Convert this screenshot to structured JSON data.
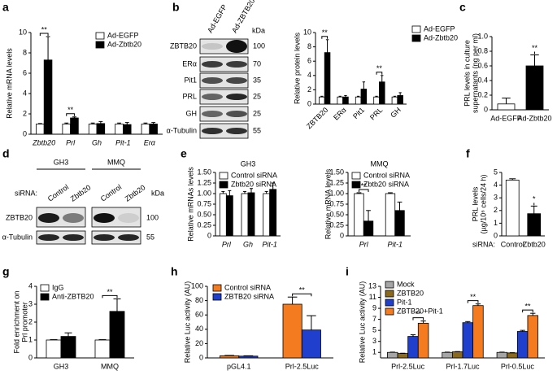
{
  "chart_data": [
    {
      "type": "bar",
      "panel": "a",
      "ylabel": "Relative mRNA levels",
      "ylim": [
        0,
        10
      ],
      "yticks": [
        0,
        2,
        4,
        6,
        8,
        10
      ],
      "categories": [
        "Zbtb20",
        "Prl",
        "Gh",
        "Pit-1",
        "Erα"
      ],
      "category_style": "italic",
      "legend": "upper right",
      "series": [
        {
          "name": "Ad-EGFP",
          "color": "#ffffff",
          "values": [
            1,
            1,
            1,
            1,
            1
          ],
          "errors": [
            0.05,
            0.1,
            0.1,
            0.1,
            0.1
          ]
        },
        {
          "name": "Ad-Zbtb20",
          "color": "#000000",
          "values": [
            7.3,
            1.6,
            1.05,
            0.95,
            1.0
          ],
          "errors": [
            2.3,
            0.1,
            0.2,
            0.2,
            0.15
          ]
        }
      ],
      "annotations": [
        {
          "text": "**",
          "category": "Zbtb20"
        },
        {
          "text": "**",
          "category": "Prl"
        }
      ]
    },
    {
      "type": "bar",
      "panel": "b",
      "ylabel": "Relative protein levels",
      "ylim": [
        0,
        10
      ],
      "yticks": [
        0,
        2,
        4,
        6,
        8,
        10
      ],
      "categories": [
        "ZBTB20",
        "ERα",
        "Pit1",
        "PRL",
        "GH"
      ],
      "xtick_rotation": 45,
      "legend": "right",
      "series": [
        {
          "name": "Ad-EGFP",
          "color": "#ffffff",
          "values": [
            1,
            1,
            1,
            1,
            1
          ],
          "errors": [
            0.1,
            0.1,
            0.1,
            0.1,
            0.1
          ]
        },
        {
          "name": "Ad-Zbtb20",
          "color": "#000000",
          "values": [
            7.2,
            1.0,
            2.1,
            3.1,
            1.2
          ],
          "errors": [
            1.8,
            0.2,
            1.0,
            0.9,
            0.4
          ]
        }
      ],
      "annotations": [
        {
          "text": "**",
          "category": "ZBTB20"
        },
        {
          "text": "**",
          "category": "PRL"
        }
      ]
    },
    {
      "type": "bar",
      "panel": "c",
      "ylabel": [
        "PRL levels in culture",
        "supernatants (ng per ml)"
      ],
      "ylim": [
        0,
        1
      ],
      "yticks": [
        0,
        0.2,
        0.4,
        0.6,
        0.8,
        {
          "value": 1,
          "label": "1.0"
        }
      ],
      "categories": [
        "Ad-EGFP",
        "Ad-Zbtb20"
      ],
      "values": [
        0.08,
        0.6
      ],
      "errors": [
        0.08,
        0.15
      ],
      "colors": [
        "#ffffff",
        "#000000"
      ],
      "annotations": [
        {
          "text": "**",
          "category": "Ad-Zbtb20"
        }
      ]
    },
    {
      "type": "bar",
      "panel": "e",
      "title": "GH3",
      "ylabel": "Relative mRNAs levels",
      "ylim": [
        0,
        1.5
      ],
      "yticks": [
        0,
        0.25,
        {
          "value": 0.5,
          "label": "0.50"
        },
        0.75,
        {
          "value": 1,
          "label": "1.00"
        },
        1.25,
        {
          "value": 1.5,
          "label": "1.50"
        }
      ],
      "categories": [
        "Prl",
        "Gh",
        "Pit-1"
      ],
      "category_style": "italic",
      "legend": "upper left",
      "series": [
        {
          "name": "Control siRNA",
          "color": "#ffffff",
          "values": [
            1,
            1,
            1
          ],
          "errors": [
            0.05,
            0.05,
            0.05
          ]
        },
        {
          "name": "Zbtb20 siRNA",
          "color": "#000000",
          "values": [
            0.95,
            1.02,
            1.1
          ],
          "errors": [
            0.12,
            0.1,
            0.15
          ]
        }
      ]
    },
    {
      "type": "bar",
      "title": "MMQ",
      "ylabel": "Relative mRNA levels",
      "ylim": [
        0,
        1.5
      ],
      "yticks": [
        0,
        0.25,
        {
          "value": 0.5,
          "label": "0.50"
        },
        0.75,
        {
          "value": 1,
          "label": "1.00"
        },
        1.25,
        {
          "value": 1.5,
          "label": "1.50"
        }
      ],
      "categories": [
        "Prl",
        "Pit-1"
      ],
      "category_style": "italic",
      "legend": "upper left",
      "series": [
        {
          "name": "Control siRNA",
          "color": "#ffffff",
          "values": [
            1,
            1
          ],
          "errors": [
            0.02,
            0.02
          ]
        },
        {
          "name": "Zbtb20 siRNA",
          "color": "#000000",
          "values": [
            0.35,
            0.6
          ],
          "errors": [
            0.25,
            0.2
          ]
        }
      ],
      "annotations": [
        {
          "text": "**",
          "category": "Prl"
        }
      ]
    },
    {
      "type": "bar",
      "panel": "f",
      "ylabel": [
        "PRL levels",
        "(µg/10⁶ cells/24 h)"
      ],
      "ylim": [
        0,
        5
      ],
      "yticks": [
        0,
        1,
        2,
        3,
        4,
        5
      ],
      "xlabel_prefix": "siRNA:",
      "categories": [
        "Control",
        "Zbtb20"
      ],
      "values": [
        4.4,
        1.75
      ],
      "errors": [
        0.1,
        0.6
      ],
      "colors": [
        "#ffffff",
        "#000000"
      ],
      "annotations": [
        {
          "text": "*",
          "category": "Zbtb20"
        }
      ]
    },
    {
      "type": "bar",
      "panel": "g",
      "ylabel": [
        "Fold enrichment on",
        "Prl promoter"
      ],
      "ylim": [
        0,
        4
      ],
      "yticks": [
        0,
        1,
        2,
        3,
        4
      ],
      "categories": [
        "GH3",
        "MMQ"
      ],
      "legend": "upper left",
      "series": [
        {
          "name": "IgG",
          "color": "#ffffff",
          "values": [
            1,
            1
          ],
          "errors": [
            0.02,
            0.02
          ]
        },
        {
          "name": "Anti-ZBTB20",
          "color": "#000000",
          "values": [
            1.2,
            2.6
          ],
          "errors": [
            0.2,
            0.7
          ]
        }
      ],
      "annotations": [
        {
          "text": "**",
          "category": "MMQ"
        }
      ]
    },
    {
      "type": "bar",
      "panel": "h",
      "ylabel": "Relative Luc activity (AU)",
      "ylim": [
        0,
        100
      ],
      "yticks": [
        0,
        20,
        40,
        60,
        80,
        100
      ],
      "categories": [
        "pGL4.1",
        "Prl-2.5Luc"
      ],
      "legend": "upper left",
      "series": [
        {
          "name": "Control siRNA",
          "color": "#f47b20",
          "values": [
            3,
            75
          ],
          "errors": [
            0.5,
            10
          ]
        },
        {
          "name": "ZBTB20 siRNA",
          "color": "#1f3fcc",
          "values": [
            2.5,
            39
          ],
          "errors": [
            0.5,
            20
          ]
        }
      ],
      "annotations": [
        {
          "text": "**",
          "category": "Prl-2.5Luc"
        }
      ]
    },
    {
      "type": "bar",
      "panel": "i",
      "ylabel": "Relative Luc activity (AU)",
      "ylim": [
        0,
        13
      ],
      "yticks": [
        1,
        3,
        5,
        7,
        9,
        11,
        13
      ],
      "categories": [
        "Prl-2.5Luc",
        "Prl-1.7Luc",
        "Prl-0.5Luc"
      ],
      "legend": "upper left",
      "series": [
        {
          "name": "Mock",
          "color": "#a6a6a6",
          "values": [
            1,
            1,
            1
          ],
          "errors": [
            0.05,
            0.05,
            0.05
          ]
        },
        {
          "name": "ZBTB20",
          "color": "#8b6a1e",
          "values": [
            0.8,
            1.1,
            0.9
          ],
          "errors": [
            0.05,
            0.05,
            0.05
          ]
        },
        {
          "name": "Pit-1",
          "color": "#1f3fcc",
          "values": [
            3.9,
            6.4,
            4.8
          ],
          "errors": [
            0.3,
            0.2,
            0.2
          ]
        },
        {
          "name": "ZBTB20+Pit-1",
          "color": "#f47b20",
          "values": [
            6.3,
            9.5,
            7.7
          ],
          "errors": [
            0.4,
            0.3,
            0.4
          ]
        }
      ],
      "annotations": [
        {
          "text": "**",
          "category": "Prl-2.5Luc"
        },
        {
          "text": "**",
          "category": "Prl-1.7Luc"
        },
        {
          "text": "**",
          "category": "Prl-0.5Luc"
        }
      ]
    }
  ],
  "blots": [
    {
      "columns": [
        "Ad-EGFP",
        "Ad-ZBTB20"
      ],
      "kda_label": "kDa",
      "rows": [
        {
          "label": "ZBTB20",
          "kda": "100"
        },
        {
          "label": "ERα",
          "kda": "70"
        },
        {
          "label": "Pit1",
          "kda": "35"
        },
        {
          "label": "PRL",
          "kda": "25"
        },
        {
          "label": "GH",
          "kda": "25"
        },
        {
          "label": "α-Tubulin",
          "kda": "55"
        }
      ]
    },
    {
      "panel": "d",
      "groups": [
        "GH3",
        "MMQ"
      ],
      "row_header": "siRNA:",
      "columns": [
        "Control",
        "Zbtb20",
        "Control",
        "Zbtb20"
      ],
      "kda_label": "kDa",
      "rows": [
        {
          "label": "ZBTB20",
          "kda": "100"
        },
        {
          "label": "α-Tubulin",
          "kda": "55"
        }
      ]
    }
  ]
}
